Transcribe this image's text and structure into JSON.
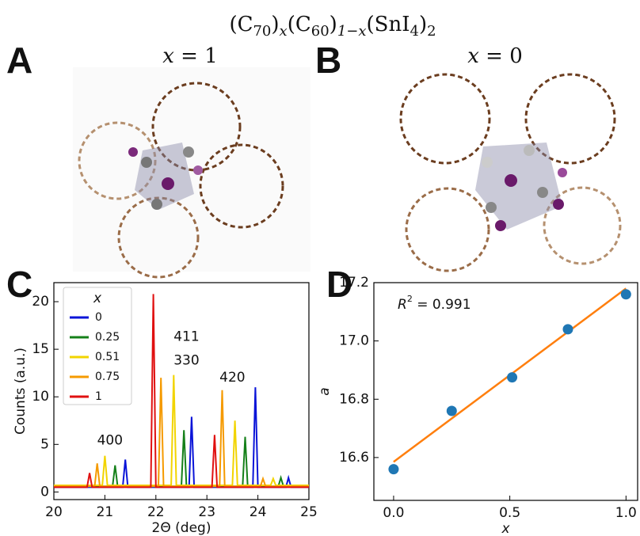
{
  "title_parts": [
    "(C",
    "70",
    ")",
    "x",
    "(C",
    "60",
    ")",
    "1−x",
    "(SnI",
    "4",
    ")",
    "2"
  ],
  "panels": [
    {
      "label": "A",
      "caption_parts": [
        "x",
        " = 1"
      ]
    },
    {
      "label": "B",
      "caption_parts": [
        "x",
        " = 0"
      ]
    }
  ],
  "chart_data": [
    {
      "type": "line",
      "panel_label": "C",
      "x_label": "2Θ (deg)",
      "y_label": "Counts (a.u.)",
      "xlim": [
        20,
        25
      ],
      "xticks": [
        20,
        21,
        22,
        23,
        24,
        25
      ],
      "ylim": [
        -0.8,
        22
      ],
      "yticks": [
        0,
        5,
        10,
        15,
        20
      ],
      "legend": "upper left",
      "legend_title": "x",
      "annotations": [
        {
          "text": "400",
          "x": 21.1,
          "y": 5.4
        },
        {
          "text": "411",
          "x": 22.6,
          "y": 16.3
        },
        {
          "text": "330",
          "x": 22.6,
          "y": 13.8
        },
        {
          "text": "420",
          "x": 23.5,
          "y": 12
        }
      ],
      "series": [
        {
          "name": "0",
          "color": "#0a14d8",
          "x": [
            20,
            21.35,
            21.4,
            21.45,
            22.65,
            22.7,
            22.75,
            23.9,
            23.95,
            24.0,
            24.55,
            24.6,
            24.65,
            25
          ],
          "values": [
            0.5,
            0.5,
            3.4,
            0.5,
            0.5,
            7.9,
            0.5,
            0.5,
            11,
            0.5,
            0.5,
            1.5,
            0.5,
            0.5
          ]
        },
        {
          "name": "0.25",
          "color": "#15801a",
          "x": [
            20,
            21.15,
            21.2,
            21.25,
            22.5,
            22.55,
            22.6,
            23.7,
            23.75,
            23.8,
            24.4,
            24.45,
            24.5,
            25
          ],
          "values": [
            0.6,
            0.6,
            2.8,
            0.6,
            0.6,
            6.5,
            0.6,
            0.6,
            5.8,
            0.6,
            0.6,
            1.5,
            0.6,
            0.6
          ]
        },
        {
          "name": "0.51",
          "color": "#f2d400",
          "x": [
            20,
            20.95,
            21.0,
            21.05,
            22.3,
            22.35,
            22.4,
            23.5,
            23.55,
            23.6,
            24.25,
            24.3,
            24.35,
            25
          ],
          "values": [
            0.7,
            0.7,
            3.8,
            0.7,
            0.7,
            12.3,
            0.7,
            0.7,
            7.5,
            0.7,
            0.7,
            1.4,
            0.7,
            0.7
          ]
        },
        {
          "name": "0.75",
          "color": "#f59a00",
          "x": [
            20,
            20.8,
            20.85,
            20.9,
            22.05,
            22.1,
            22.15,
            23.25,
            23.3,
            23.35,
            24.05,
            24.1,
            24.15,
            25
          ],
          "values": [
            0.6,
            0.6,
            3,
            0.6,
            0.6,
            12,
            0.6,
            0.6,
            10.7,
            0.6,
            0.6,
            1.4,
            0.6,
            0.6
          ]
        },
        {
          "name": "1",
          "color": "#e01010",
          "x": [
            20,
            20.65,
            20.7,
            20.75,
            21.9,
            21.95,
            22.0,
            23.1,
            23.15,
            23.2,
            25
          ],
          "values": [
            0.5,
            0.5,
            2,
            0.5,
            0.5,
            20.8,
            0.5,
            0.5,
            6,
            0.5,
            0.5
          ]
        }
      ]
    },
    {
      "type": "scatter",
      "panel_label": "D",
      "x_label": "x",
      "y_label": "a",
      "annotation_parts": [
        "R",
        "2",
        " = 0.991"
      ],
      "xlim": [
        -0.085,
        1.05
      ],
      "xticks": [
        {
          "value": 0,
          "label": "0.0"
        },
        {
          "value": 0.5,
          "label": "0.5"
        },
        {
          "value": 1,
          "label": "1.0"
        }
      ],
      "ylim": [
        16.453,
        17.2
      ],
      "yticks": [
        16.6,
        16.8,
        {
          "value": 17,
          "label": "17.0"
        },
        17.2
      ],
      "x": [
        0,
        0.25,
        0.51,
        0.75,
        1
      ],
      "values": [
        16.56,
        16.76,
        16.875,
        17.04,
        17.16
      ],
      "color": "#1f77b4",
      "fit": {
        "x": [
          0,
          1
        ],
        "values": [
          16.585,
          17.18
        ],
        "color": "#ff7f0e"
      }
    }
  ]
}
